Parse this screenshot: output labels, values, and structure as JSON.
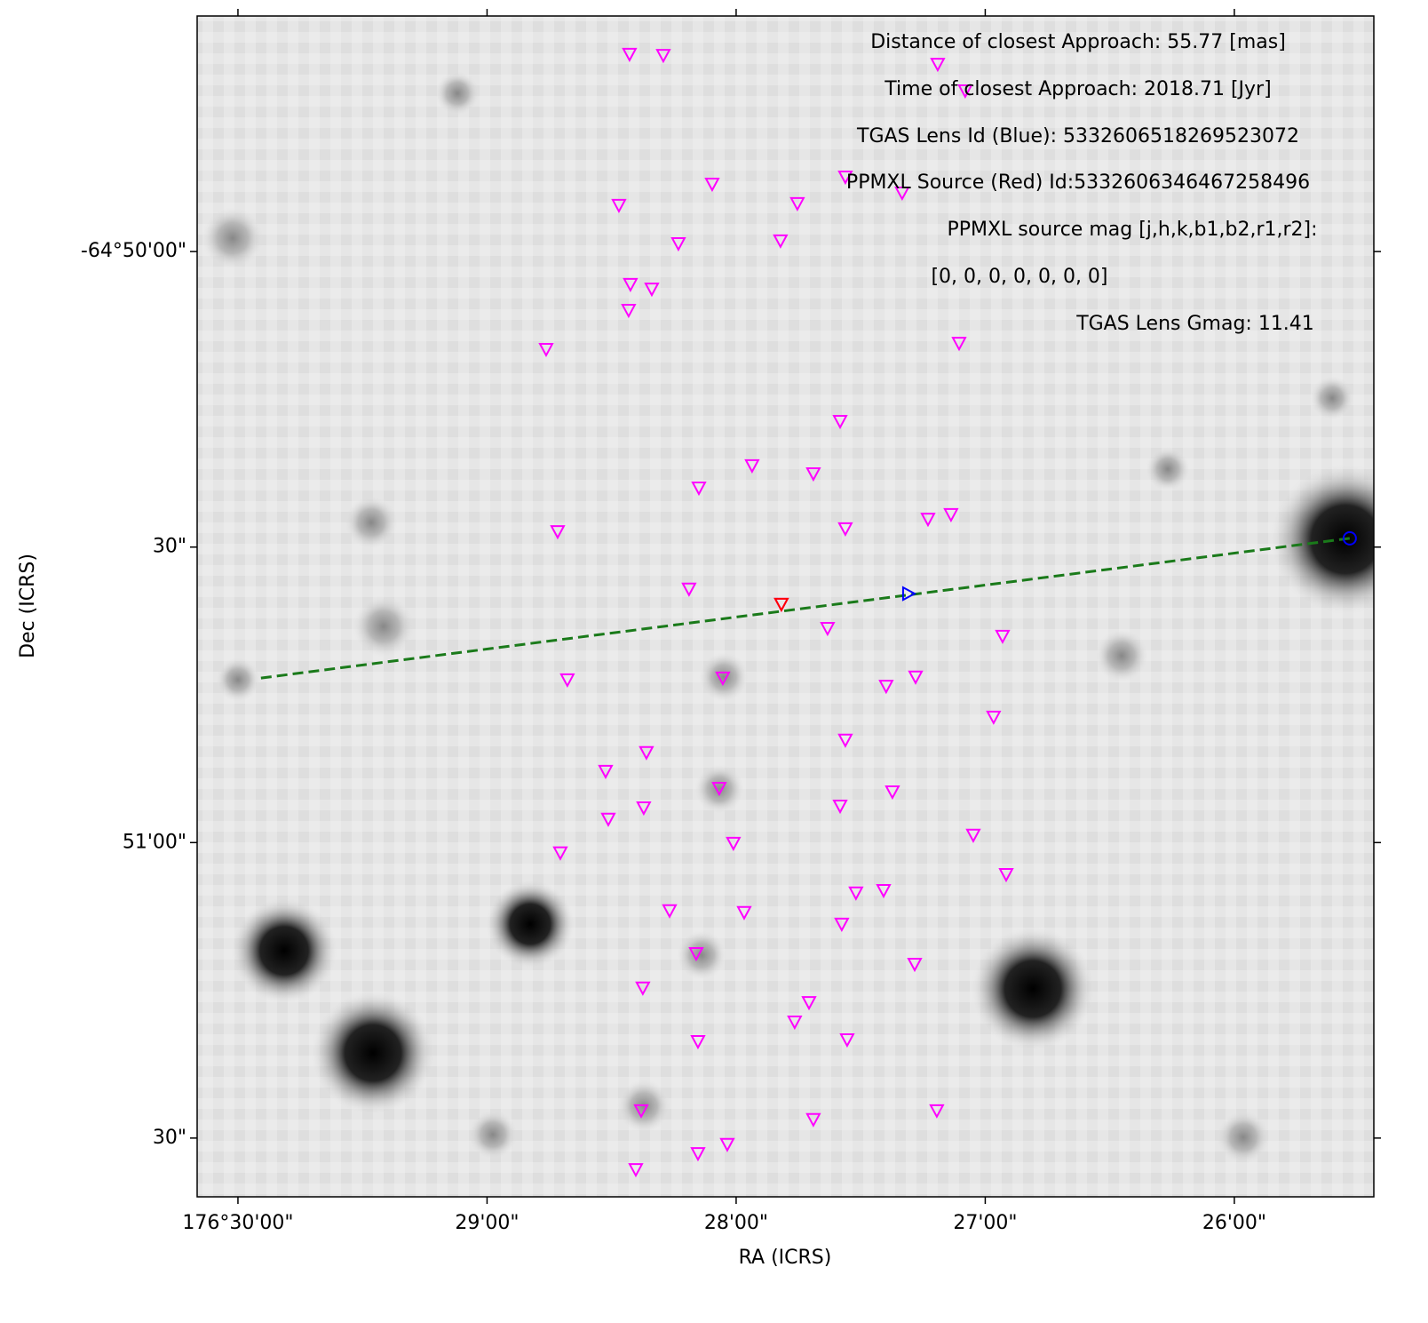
{
  "chart_data": {
    "type": "scatter",
    "xlabel": "RA (ICRS)",
    "ylabel": "Dec (ICRS)",
    "xlim": [
      176.50273,
      176.424
    ],
    "ylim": [
      -64.85999,
      -64.82669
    ],
    "xticks": [
      {
        "value": 176.5,
        "label": "176°30'00\""
      },
      {
        "value": 176.483333,
        "label": "29'00\""
      },
      {
        "value": 176.466667,
        "label": "28'00\""
      },
      {
        "value": 176.45,
        "label": "27'00\""
      },
      {
        "value": 176.433333,
        "label": "26'00\""
      }
    ],
    "yticks": [
      {
        "value": -64.833333,
        "label": "-64°50'00\""
      },
      {
        "value": -64.841667,
        "label": "30\""
      },
      {
        "value": -64.85,
        "label": "51'00\""
      },
      {
        "value": -64.858333,
        "label": "30\""
      }
    ],
    "annotations": [
      "Distance of closest Approach: 55.77 [mas]",
      "Time of closest Approach: 2018.71 [Jyr]",
      "TGAS Lens Id (Blue): 5332606518269523072",
      "PPMXL Source (Red) Id:5332606346467258496",
      "PPMXL source mag [j,h,k,b1,b2,r1,r2]:",
      "[0, 0, 0, 0, 0, 0, 0]",
      "TGAS Lens Gmag: 11.41"
    ],
    "series": [
      {
        "marker": "triangle_down",
        "color": "#ff00ff",
        "x": [
          176.4738,
          176.47154,
          176.45318,
          176.45134,
          176.46827,
          176.45936,
          176.47451,
          176.46257,
          176.45556,
          176.47053,
          176.4637,
          176.47374,
          176.47231,
          176.47386,
          176.47938,
          176.45175,
          176.45971,
          176.4656,
          176.4615,
          176.46916,
          176.45383,
          176.45229,
          176.45936,
          176.47861,
          176.46982,
          176.46364,
          176.46055,
          176.44884,
          176.47796,
          176.46756,
          176.45663,
          176.45466,
          176.44944,
          176.45936,
          176.47267,
          176.4754,
          176.4678,
          176.45621,
          176.47285,
          176.45971,
          176.47522,
          176.4508,
          176.46685,
          176.47843,
          176.4486,
          176.45865,
          176.4568,
          176.47112,
          176.46613,
          176.4596,
          176.46934,
          176.45472,
          176.47291,
          176.46179,
          176.46275,
          176.45924,
          176.46922,
          176.47302,
          176.45324,
          176.4615,
          176.46726,
          176.46922,
          176.47338
        ],
        "y": [
          -64.82779,
          -64.82782,
          -64.82807,
          -64.82882,
          -64.83145,
          -64.83125,
          -64.83205,
          -64.832,
          -64.8317,
          -64.83313,
          -64.83305,
          -64.83428,
          -64.83441,
          -64.83501,
          -64.83611,
          -64.83594,
          -64.83814,
          -64.83939,
          -64.83962,
          -64.84002,
          -64.8409,
          -64.84077,
          -64.84117,
          -64.84125,
          -64.84287,
          -64.8433,
          -64.84398,
          -64.8442,
          -64.84543,
          -64.84538,
          -64.84561,
          -64.84535,
          -64.84648,
          -64.84713,
          -64.84748,
          -64.84801,
          -64.84849,
          -64.84859,
          -64.84904,
          -64.84899,
          -64.84936,
          -64.84981,
          -64.85004,
          -64.85031,
          -64.85092,
          -64.85144,
          -64.85137,
          -64.85194,
          -64.85199,
          -64.85232,
          -64.85315,
          -64.85345,
          -64.85412,
          -64.85453,
          -64.85508,
          -64.85558,
          -64.85563,
          -64.85758,
          -64.85758,
          -64.85783,
          -64.85853,
          -64.85879,
          -64.85924
        ]
      },
      {
        "linestyle": "dashed",
        "color": "#1a7a1a",
        "x": [
          176.49846,
          176.42561
        ],
        "y": [
          -64.84536,
          -64.84142
        ]
      },
      {
        "marker": "triangle_down",
        "color": "#ff0000",
        "x": [
          176.46364
        ],
        "y": [
          -64.8433
        ]
      },
      {
        "marker": "triangle_right",
        "color": "#0000ff",
        "x": [
          176.45514
        ],
        "y": [
          -64.84298
        ]
      },
      {
        "marker": "circle",
        "color": "#0000ff",
        "x": [
          176.42561
        ],
        "y": [
          -64.84142
        ]
      }
    ]
  }
}
